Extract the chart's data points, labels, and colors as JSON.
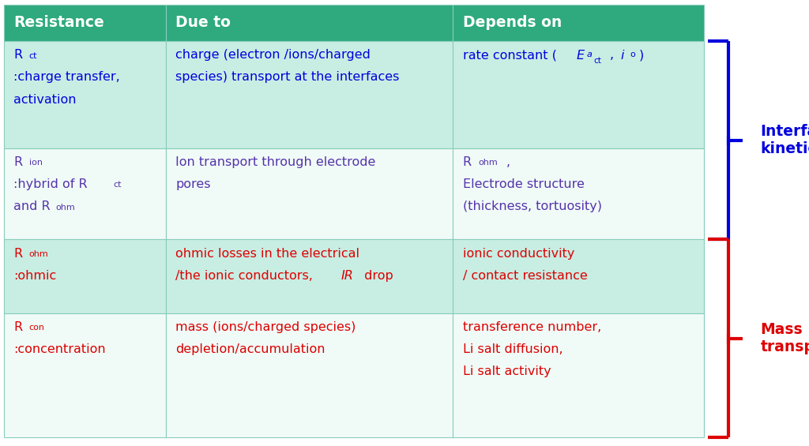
{
  "header_bg": "#2EAA7E",
  "header_text_color": "#FFFFFF",
  "row_bg_teal": "#C8EDE3",
  "row_bg_white": "#F0FBF7",
  "border_color": "#88CCBB",
  "col_headers": [
    "Resistance",
    "Due to",
    "Depends on"
  ],
  "blue_color": "#0000DD",
  "purple_color": "#5533AA",
  "red_color": "#DD0000",
  "interfacial_label": "Interfacial\nkinetics",
  "mass_label": "Mass\ntransport",
  "fig_w": 10.24,
  "fig_h": 5.65
}
